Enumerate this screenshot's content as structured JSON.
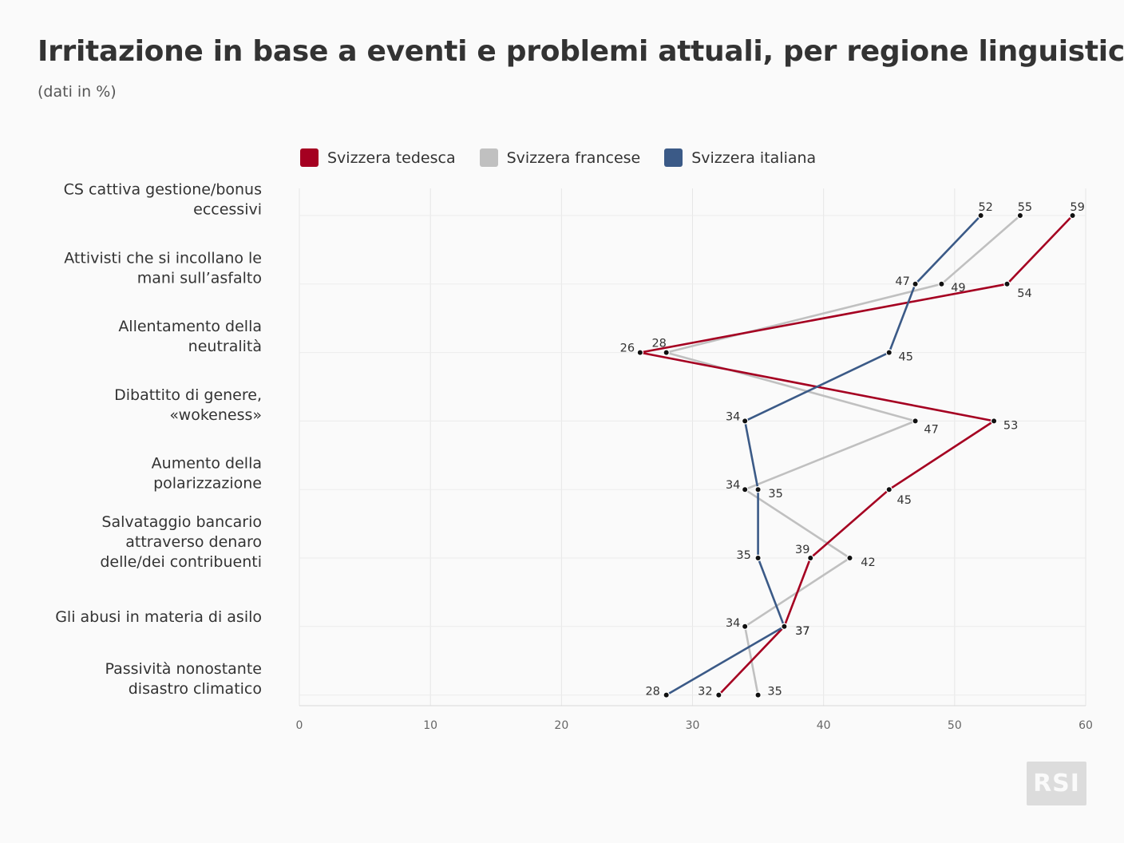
{
  "title": "Irritazione in base a eventi e problemi attuali, per regione linguistica",
  "subtitle": "(dati in %)",
  "logo_text": "RSI",
  "legend": [
    {
      "name": "Svizzera tedesca",
      "color": "#a50021"
    },
    {
      "name": "Svizzera francese",
      "color": "#c0c0c0"
    },
    {
      "name": "Svizzera italiana",
      "color": "#3b5a87"
    }
  ],
  "chart_data": {
    "type": "line",
    "orientation": "horizontal",
    "categories": [
      [
        "CS cattiva gestione/bonus",
        "eccessivi"
      ],
      [
        "Attivisti che si incollano le",
        "mani sull’asfalto"
      ],
      [
        "Allentamento della",
        "neutralità"
      ],
      [
        "Dibattito di genere,",
        "«wokeness»"
      ],
      [
        "Aumento della",
        "polarizzazione"
      ],
      [
        "Salvataggio bancario",
        "attraverso denaro",
        "delle/dei contribuenti"
      ],
      [
        "Gli abusi in materia di asilo"
      ],
      [
        "Passività nonostante",
        "disastro climatico"
      ]
    ],
    "series": [
      {
        "name": "Svizzera francese",
        "color": "#c0c0c0",
        "values": [
          55,
          49,
          28,
          47,
          34,
          42,
          34,
          35
        ]
      },
      {
        "name": "Svizzera tedesca",
        "color": "#a50021",
        "values": [
          59,
          54,
          26,
          53,
          45,
          39,
          37,
          32
        ]
      },
      {
        "name": "Svizzera italiana",
        "color": "#3b5a87",
        "values": [
          52,
          47,
          45,
          34,
          35,
          35,
          37,
          28
        ]
      }
    ],
    "x_ticks": [
      0,
      10,
      20,
      30,
      40,
      50,
      60
    ],
    "xlim": [
      0,
      60
    ],
    "grid": true,
    "legend_position": "top"
  }
}
